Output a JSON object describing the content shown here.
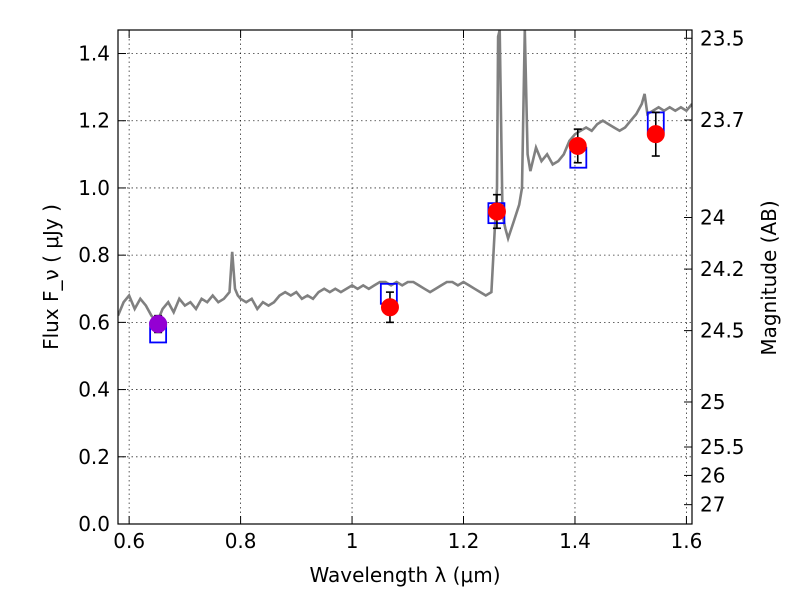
{
  "chart_data": {
    "type": "scatter",
    "xlabel": "Wavelength  λ (μm)",
    "ylabel": "Flux  F_ν  ( μJy )",
    "ylabel_right": "Magnitude (AB)",
    "xlim": [
      0.58,
      1.61
    ],
    "ylim": [
      0.0,
      1.47
    ],
    "x_ticks": [
      0.6,
      0.8,
      1.0,
      1.2,
      1.4,
      1.6
    ],
    "x_tick_labels": [
      "0.6",
      "0.8",
      "1",
      "1.2",
      "1.4",
      "1.6"
    ],
    "y_ticks": [
      0.0,
      0.2,
      0.4,
      0.6,
      0.8,
      1.0,
      1.2,
      1.4
    ],
    "y_tick_labels": [
      "0.0",
      "0.2",
      "0.4",
      "0.6",
      "0.8",
      "1.0",
      "1.2",
      "1.4"
    ],
    "right_ticks": [
      23.5,
      23.7,
      24,
      24.2,
      24.5,
      25,
      25.5,
      26,
      27
    ],
    "right_tick_labels": [
      "23.5",
      "23.7",
      "24",
      "24.2",
      "24.5",
      "25",
      "25.5",
      "26",
      "27"
    ],
    "grid": true,
    "series": [
      {
        "kind": "line",
        "color": "#808080",
        "x": [
          0.58,
          0.59,
          0.6,
          0.61,
          0.62,
          0.63,
          0.64,
          0.65,
          0.66,
          0.67,
          0.68,
          0.69,
          0.7,
          0.71,
          0.72,
          0.73,
          0.74,
          0.75,
          0.76,
          0.77,
          0.78,
          0.785,
          0.79,
          0.795,
          0.8,
          0.81,
          0.82,
          0.83,
          0.84,
          0.85,
          0.86,
          0.87,
          0.88,
          0.89,
          0.9,
          0.91,
          0.92,
          0.93,
          0.94,
          0.95,
          0.96,
          0.97,
          0.98,
          0.99,
          1.0,
          1.01,
          1.02,
          1.03,
          1.04,
          1.05,
          1.06,
          1.07,
          1.08,
          1.09,
          1.1,
          1.11,
          1.12,
          1.13,
          1.14,
          1.15,
          1.16,
          1.17,
          1.18,
          1.19,
          1.2,
          1.21,
          1.22,
          1.23,
          1.24,
          1.25,
          1.26,
          1.262,
          1.265,
          1.27,
          1.275,
          1.28,
          1.29,
          1.3,
          1.305,
          1.31,
          1.315,
          1.32,
          1.33,
          1.34,
          1.35,
          1.36,
          1.37,
          1.38,
          1.39,
          1.4,
          1.41,
          1.42,
          1.43,
          1.44,
          1.45,
          1.46,
          1.47,
          1.48,
          1.49,
          1.5,
          1.51,
          1.52,
          1.525,
          1.53,
          1.54,
          1.55,
          1.56,
          1.57,
          1.58,
          1.59,
          1.6,
          1.61
        ],
        "y": [
          0.62,
          0.66,
          0.68,
          0.64,
          0.67,
          0.65,
          0.62,
          0.6,
          0.64,
          0.66,
          0.63,
          0.67,
          0.65,
          0.66,
          0.64,
          0.67,
          0.66,
          0.68,
          0.66,
          0.67,
          0.69,
          0.81,
          0.7,
          0.68,
          0.67,
          0.66,
          0.67,
          0.64,
          0.66,
          0.65,
          0.66,
          0.68,
          0.69,
          0.68,
          0.69,
          0.67,
          0.68,
          0.67,
          0.69,
          0.7,
          0.69,
          0.7,
          0.69,
          0.7,
          0.71,
          0.7,
          0.71,
          0.7,
          0.71,
          0.72,
          0.72,
          0.71,
          0.72,
          0.71,
          0.72,
          0.72,
          0.71,
          0.7,
          0.69,
          0.7,
          0.71,
          0.72,
          0.72,
          0.71,
          0.72,
          0.71,
          0.7,
          0.69,
          0.68,
          0.69,
          1.0,
          1.45,
          1.47,
          0.92,
          0.88,
          0.85,
          0.9,
          0.95,
          1.0,
          1.47,
          1.1,
          1.05,
          1.12,
          1.08,
          1.1,
          1.07,
          1.08,
          1.1,
          1.14,
          1.16,
          1.17,
          1.18,
          1.17,
          1.19,
          1.2,
          1.19,
          1.18,
          1.17,
          1.18,
          1.2,
          1.22,
          1.25,
          1.28,
          1.22,
          1.23,
          1.24,
          1.23,
          1.24,
          1.23,
          1.24,
          1.23,
          1.25
        ]
      },
      {
        "kind": "model_points",
        "color": "#0000ff",
        "x": [
          0.652,
          1.066,
          1.259,
          1.406,
          1.545
        ],
        "y": [
          0.57,
          0.685,
          0.925,
          1.09,
          1.195
        ]
      },
      {
        "kind": "observed_points",
        "color": "#ff0000",
        "x": [
          0.652,
          1.068,
          1.26,
          1.405,
          1.545
        ],
        "y": [
          0.595,
          0.645,
          0.93,
          1.125,
          1.16
        ],
        "err": [
          0.025,
          0.045,
          0.05,
          0.05,
          0.065
        ]
      }
    ]
  }
}
